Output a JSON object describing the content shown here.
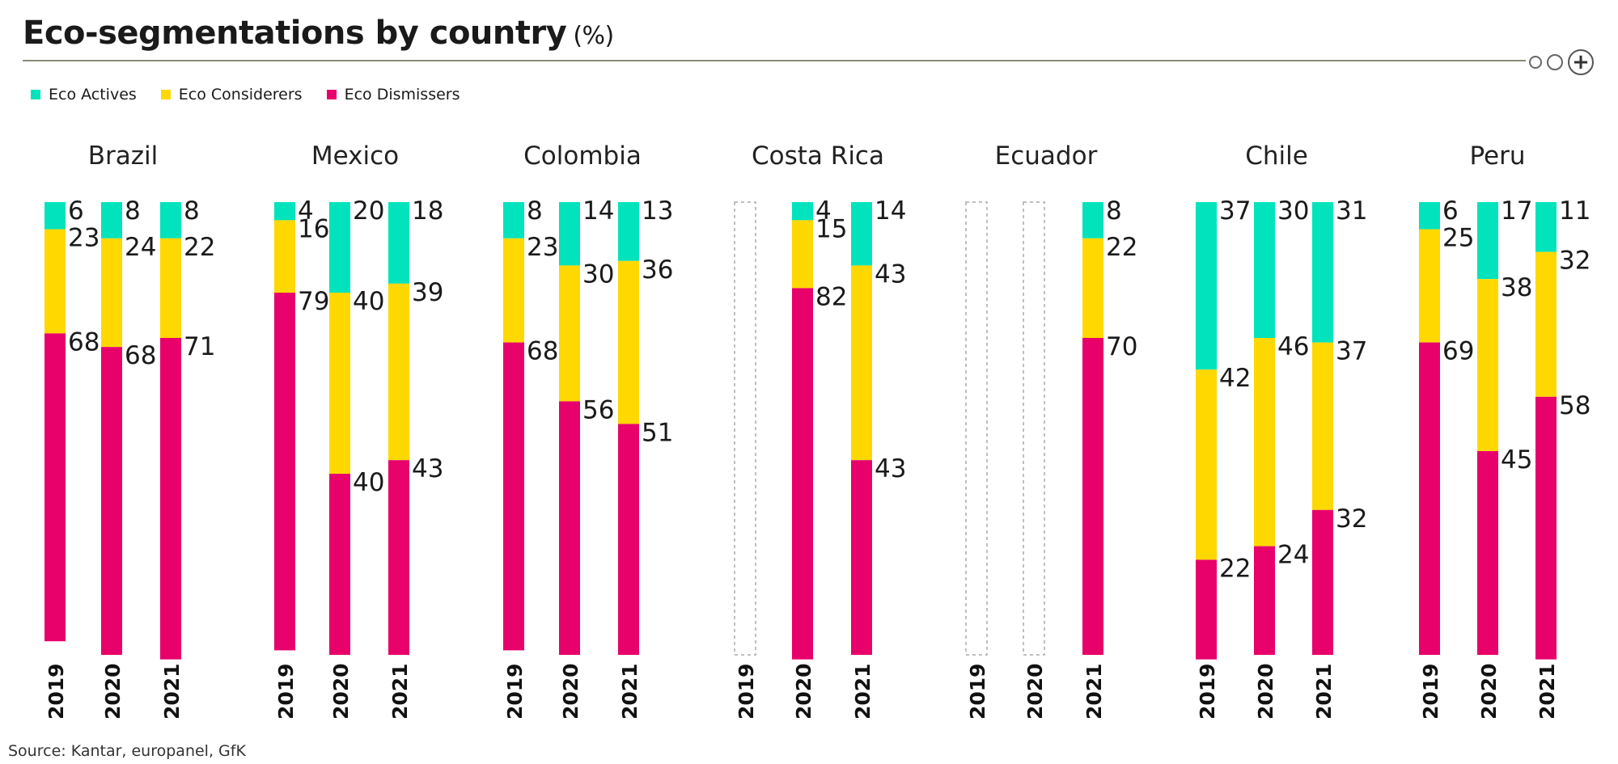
{
  "header": {
    "title": "Eco-segmentations by country",
    "unit": "(%)"
  },
  "footer": {
    "source": "Source: Kantar, europanel, GfK"
  },
  "colors": {
    "actives": "#00e3bc",
    "considerers": "#ffd800",
    "dismissers": "#e8006b"
  },
  "chart_data": {
    "type": "bar",
    "stacked": true,
    "ylim": [
      0,
      100
    ],
    "legend_position": "top-left",
    "series": [
      {
        "key": "actives",
        "name": "Eco Actives"
      },
      {
        "key": "considerers",
        "name": "Eco Considerers"
      },
      {
        "key": "dismissers",
        "name": "Eco Dismissers"
      }
    ],
    "groups": [
      {
        "country": "Brazil",
        "bars": [
          {
            "year": "2019",
            "actives": 6,
            "considerers": 23,
            "dismissers": 68
          },
          {
            "year": "2020",
            "actives": 8,
            "considerers": 24,
            "dismissers": 68
          },
          {
            "year": "2021",
            "actives": 8,
            "considerers": 22,
            "dismissers": 71
          }
        ]
      },
      {
        "country": "Mexico",
        "bars": [
          {
            "year": "2019",
            "actives": 4,
            "considerers": 16,
            "dismissers": 79
          },
          {
            "year": "2020",
            "actives": 20,
            "considerers": 40,
            "dismissers": 40
          },
          {
            "year": "2021",
            "actives": 18,
            "considerers": 39,
            "dismissers": 43
          }
        ]
      },
      {
        "country": "Colombia",
        "bars": [
          {
            "year": "2019",
            "actives": 8,
            "considerers": 23,
            "dismissers": 68
          },
          {
            "year": "2020",
            "actives": 14,
            "considerers": 30,
            "dismissers": 56
          },
          {
            "year": "2021",
            "actives": 13,
            "considerers": 36,
            "dismissers": 51
          }
        ]
      },
      {
        "country": "Costa Rica",
        "bars": [
          {
            "year": "2019",
            "actives": null,
            "considerers": null,
            "dismissers": null
          },
          {
            "year": "2020",
            "actives": 4,
            "considerers": 15,
            "dismissers": 82
          },
          {
            "year": "2021",
            "actives": 14,
            "considerers": 43,
            "dismissers": 43
          }
        ]
      },
      {
        "country": "Ecuador",
        "bars": [
          {
            "year": "2019",
            "actives": null,
            "considerers": null,
            "dismissers": null
          },
          {
            "year": "2020",
            "actives": null,
            "considerers": null,
            "dismissers": null
          },
          {
            "year": "2021",
            "actives": 8,
            "considerers": 22,
            "dismissers": 70
          }
        ]
      },
      {
        "country": "Chile",
        "bars": [
          {
            "year": "2019",
            "actives": 37,
            "considerers": 42,
            "dismissers": 22
          },
          {
            "year": "2020",
            "actives": 30,
            "considerers": 46,
            "dismissers": 24
          },
          {
            "year": "2021",
            "actives": 31,
            "considerers": 37,
            "dismissers": 32
          }
        ]
      },
      {
        "country": "Peru",
        "bars": [
          {
            "year": "2019",
            "actives": 6,
            "considerers": 25,
            "dismissers": 69
          },
          {
            "year": "2020",
            "actives": 17,
            "considerers": 38,
            "dismissers": 45
          },
          {
            "year": "2021",
            "actives": 11,
            "considerers": 32,
            "dismissers": 58
          }
        ]
      }
    ]
  }
}
